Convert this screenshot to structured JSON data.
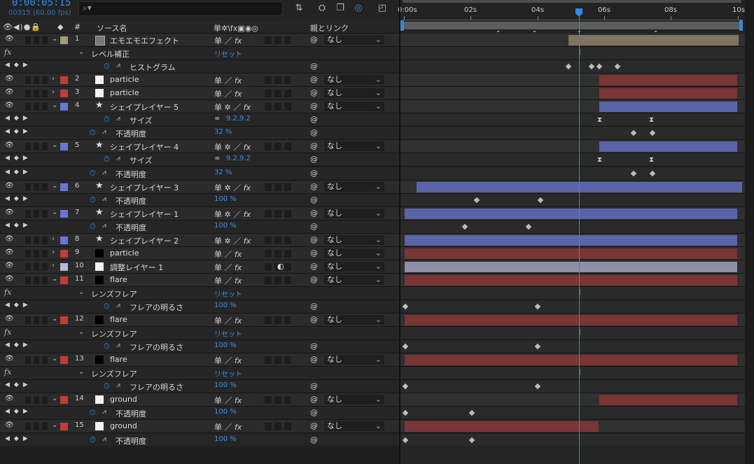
{
  "timecode": "0:00:05:15",
  "frames": "00315 (60.00 fps)",
  "search": {
    "placeholder": "",
    "icon": "search-icon"
  },
  "columns": {
    "av": "👁◀)●🔒",
    "label": "◆",
    "num": "#",
    "source": "ソース名",
    "switches": "单✲\\fx▣◉◎",
    "parent": "親とリンク"
  },
  "ruler": {
    "t0": "0:00s",
    "t2": "02s",
    "t4": "04s",
    "t6": "06s",
    "t8": "08s",
    "t10": "10s"
  },
  "colors": {
    "accent": "#3b8ee6",
    "red": "#b03a3a",
    "blue": "#6b74d4",
    "tan": "#a89a7c",
    "lavender": "#9b9bc8"
  },
  "rows": [
    {
      "kind": "layer",
      "num": "1",
      "name": "エモエモエフェクト",
      "label": "#a89a7c",
      "thumb": "comp",
      "parent": "なし",
      "twirl": "open"
    },
    {
      "kind": "effect",
      "name": "レベル補正",
      "val": "リセット"
    },
    {
      "kind": "prop",
      "name": "ヒストグラム",
      "val": "",
      "indent": 2
    },
    {
      "kind": "layer",
      "num": "2",
      "name": "particle",
      "label": "#c43b3b",
      "thumb": "white",
      "parent": "なし",
      "twirl": "closed"
    },
    {
      "kind": "layer",
      "num": "3",
      "name": "particle",
      "label": "#c43b3b",
      "thumb": "white",
      "parent": "なし",
      "twirl": "closed"
    },
    {
      "kind": "layer",
      "num": "4",
      "name": "シェイプレイヤー 5",
      "label": "#6b74d4",
      "thumb": "star",
      "parent": "なし",
      "twirl": "open"
    },
    {
      "kind": "prop",
      "name": "サイズ",
      "val": "9.2,9.2",
      "indent": 2
    },
    {
      "kind": "prop",
      "name": "不透明度",
      "val": "32 %",
      "indent": 1
    },
    {
      "kind": "layer",
      "num": "5",
      "name": "シェイプレイヤー 4",
      "label": "#6b74d4",
      "thumb": "star",
      "parent": "なし",
      "twirl": "open"
    },
    {
      "kind": "prop",
      "name": "サイズ",
      "val": "9.2,9.2",
      "indent": 2
    },
    {
      "kind": "prop",
      "name": "不透明度",
      "val": "32 %",
      "indent": 1
    },
    {
      "kind": "layer",
      "num": "6",
      "name": "シェイプレイヤー 3",
      "label": "#6b74d4",
      "thumb": "star",
      "parent": "なし",
      "twirl": "open"
    },
    {
      "kind": "prop",
      "name": "不透明度",
      "val": "100 %",
      "indent": 1
    },
    {
      "kind": "layer",
      "num": "7",
      "name": "シェイプレイヤー 1",
      "label": "#6b74d4",
      "thumb": "star",
      "parent": "なし",
      "twirl": "open"
    },
    {
      "kind": "prop",
      "name": "不透明度",
      "val": "100 %",
      "indent": 1
    },
    {
      "kind": "layer",
      "num": "8",
      "name": "シェイプレイヤー 2",
      "label": "#6b74d4",
      "thumb": "star",
      "parent": "なし",
      "twirl": "closed"
    },
    {
      "kind": "layer",
      "num": "9",
      "name": "particle",
      "label": "#c43b3b",
      "thumb": "black",
      "parent": "なし",
      "twirl": "closed"
    },
    {
      "kind": "layer",
      "num": "10",
      "name": "調整レイヤー 1",
      "label": "#b8b8d8",
      "thumb": "white",
      "parent": "なし",
      "twirl": "closed"
    },
    {
      "kind": "layer",
      "num": "11",
      "name": "flare",
      "label": "#c43b3b",
      "thumb": "black",
      "parent": "なし",
      "twirl": "open"
    },
    {
      "kind": "effect",
      "name": "レンズフレア",
      "val": "リセット"
    },
    {
      "kind": "prop",
      "name": "フレアの明るさ",
      "val": "100 %",
      "indent": 2
    },
    {
      "kind": "layer",
      "num": "12",
      "name": "flare",
      "label": "#c43b3b",
      "thumb": "black",
      "parent": "なし",
      "twirl": "open"
    },
    {
      "kind": "effect",
      "name": "レンズフレア",
      "val": "リセット"
    },
    {
      "kind": "prop",
      "name": "フレアの明るさ",
      "val": "100 %",
      "indent": 2
    },
    {
      "kind": "layer",
      "num": "13",
      "name": "flare",
      "label": "#c43b3b",
      "thumb": "black",
      "parent": "なし",
      "twirl": "open"
    },
    {
      "kind": "effect",
      "name": "レンズフレア",
      "val": "リセット"
    },
    {
      "kind": "prop",
      "name": "フレアの明るさ",
      "val": "100 %",
      "indent": 2
    },
    {
      "kind": "layer",
      "num": "14",
      "name": "ground",
      "label": "#c43b3b",
      "thumb": "white",
      "parent": "なし",
      "twirl": "open"
    },
    {
      "kind": "prop",
      "name": "不透明度",
      "val": "100 %",
      "indent": 1
    },
    {
      "kind": "layer",
      "num": "15",
      "name": "ground",
      "label": "#c43b3b",
      "thumb": "white",
      "parent": "なし",
      "twirl": "open"
    },
    {
      "kind": "prop",
      "name": "不透明度",
      "val": "100 %",
      "indent": 1
    }
  ]
}
